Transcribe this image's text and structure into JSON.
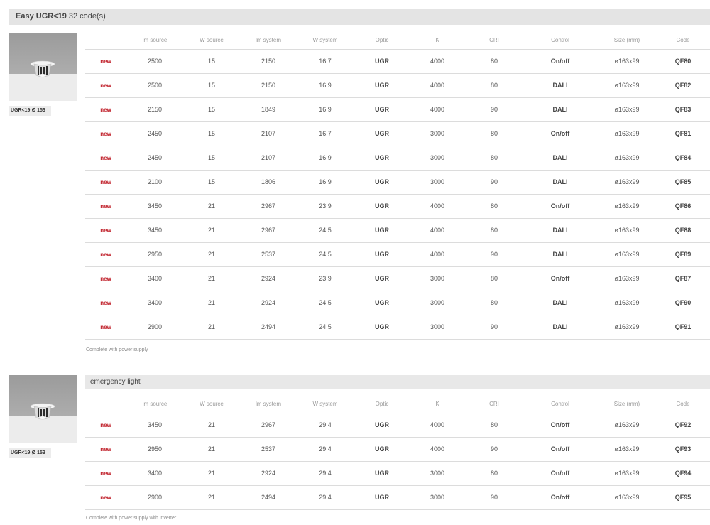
{
  "header": {
    "title": "Easy UGR<19",
    "count": "32 code(s)"
  },
  "columns": [
    "",
    "lm source",
    "W source",
    "lm system",
    "W system",
    "Optic",
    "K",
    "CRI",
    "Control",
    "Size (mm)",
    "Code"
  ],
  "product_label": "UGR<19;Ø 153",
  "section1": {
    "rows": [
      [
        "new",
        "2500",
        "15",
        "2150",
        "16.7",
        "UGR",
        "4000",
        "80",
        "On/off",
        "ø163x99",
        "QF80"
      ],
      [
        "new",
        "2500",
        "15",
        "2150",
        "16.9",
        "UGR",
        "4000",
        "80",
        "DALI",
        "ø163x99",
        "QF82"
      ],
      [
        "new",
        "2150",
        "15",
        "1849",
        "16.9",
        "UGR",
        "4000",
        "90",
        "DALI",
        "ø163x99",
        "QF83"
      ],
      [
        "new",
        "2450",
        "15",
        "2107",
        "16.7",
        "UGR",
        "3000",
        "80",
        "On/off",
        "ø163x99",
        "QF81"
      ],
      [
        "new",
        "2450",
        "15",
        "2107",
        "16.9",
        "UGR",
        "3000",
        "80",
        "DALI",
        "ø163x99",
        "QF84"
      ],
      [
        "new",
        "2100",
        "15",
        "1806",
        "16.9",
        "UGR",
        "3000",
        "90",
        "DALI",
        "ø163x99",
        "QF85"
      ],
      [
        "new",
        "3450",
        "21",
        "2967",
        "23.9",
        "UGR",
        "4000",
        "80",
        "On/off",
        "ø163x99",
        "QF86"
      ],
      [
        "new",
        "3450",
        "21",
        "2967",
        "24.5",
        "UGR",
        "4000",
        "80",
        "DALI",
        "ø163x99",
        "QF88"
      ],
      [
        "new",
        "2950",
        "21",
        "2537",
        "24.5",
        "UGR",
        "4000",
        "90",
        "DALI",
        "ø163x99",
        "QF89"
      ],
      [
        "new",
        "3400",
        "21",
        "2924",
        "23.9",
        "UGR",
        "3000",
        "80",
        "On/off",
        "ø163x99",
        "QF87"
      ],
      [
        "new",
        "3400",
        "21",
        "2924",
        "24.5",
        "UGR",
        "3000",
        "80",
        "DALI",
        "ø163x99",
        "QF90"
      ],
      [
        "new",
        "2900",
        "21",
        "2494",
        "24.5",
        "UGR",
        "3000",
        "90",
        "DALI",
        "ø163x99",
        "QF91"
      ]
    ],
    "note": "Complete with power supply"
  },
  "section2": {
    "title": "emergency light",
    "rows": [
      [
        "new",
        "3450",
        "21",
        "2967",
        "29.4",
        "UGR",
        "4000",
        "80",
        "On/off",
        "ø163x99",
        "QF92"
      ],
      [
        "new",
        "2950",
        "21",
        "2537",
        "29.4",
        "UGR",
        "4000",
        "90",
        "On/off",
        "ø163x99",
        "QF93"
      ],
      [
        "new",
        "3400",
        "21",
        "2924",
        "29.4",
        "UGR",
        "3000",
        "80",
        "On/off",
        "ø163x99",
        "QF94"
      ],
      [
        "new",
        "2900",
        "21",
        "2494",
        "29.4",
        "UGR",
        "3000",
        "90",
        "On/off",
        "ø163x99",
        "QF95"
      ]
    ],
    "note": "Complete with power supply with inverter"
  },
  "colors": {
    "new_badge": "#c0202a",
    "header_bg": "#e4e4e4",
    "divider": "#dcdcdc"
  }
}
